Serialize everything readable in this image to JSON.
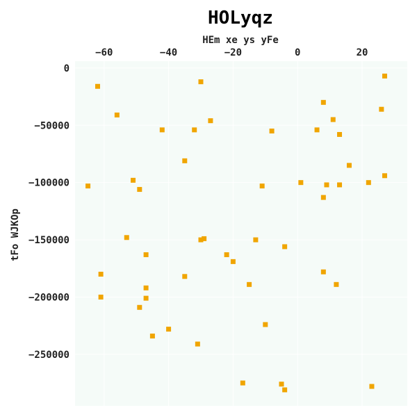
{
  "chart_data": {
    "type": "scatter",
    "title": "HOLyqz",
    "xlabel": "HEm xe  ys yFe",
    "ylabel": "tFo WJKOp",
    "xlim": [
      -69,
      34
    ],
    "ylim": [
      -295000,
      6000
    ],
    "x_ticks": [
      -60,
      -40,
      -20,
      0,
      20
    ],
    "y_ticks": [
      0,
      -50000,
      -100000,
      -150000,
      -200000,
      -250000
    ],
    "x_axis_position": "top",
    "grid": true,
    "colors": {
      "background": "#f5fbf8",
      "marker": "#f0a500",
      "grid": "#ffffff"
    },
    "series": [
      {
        "marker": "square",
        "points": [
          {
            "x": -62,
            "y": -16000
          },
          {
            "x": -30,
            "y": -12000
          },
          {
            "x": 27,
            "y": -7000
          },
          {
            "x": 8,
            "y": -30000
          },
          {
            "x": -56,
            "y": -41000
          },
          {
            "x": 26,
            "y": -36000
          },
          {
            "x": -27,
            "y": -46000
          },
          {
            "x": 11,
            "y": -45000
          },
          {
            "x": -42,
            "y": -54000
          },
          {
            "x": -32,
            "y": -54000
          },
          {
            "x": -8,
            "y": -55000
          },
          {
            "x": 6,
            "y": -54000
          },
          {
            "x": 13,
            "y": -58000
          },
          {
            "x": -35,
            "y": -81000
          },
          {
            "x": 16,
            "y": -85000
          },
          {
            "x": -51,
            "y": -98000
          },
          {
            "x": -65,
            "y": -103000
          },
          {
            "x": -49,
            "y": -106000
          },
          {
            "x": -11,
            "y": -103000
          },
          {
            "x": 1,
            "y": -100000
          },
          {
            "x": 9,
            "y": -102000
          },
          {
            "x": 13,
            "y": -102000
          },
          {
            "x": 22,
            "y": -100000
          },
          {
            "x": 27,
            "y": -94000
          },
          {
            "x": 8,
            "y": -113000
          },
          {
            "x": -53,
            "y": -148000
          },
          {
            "x": -30,
            "y": -150000
          },
          {
            "x": -29,
            "y": -149000
          },
          {
            "x": -13,
            "y": -150000
          },
          {
            "x": -4,
            "y": -156000
          },
          {
            "x": -47,
            "y": -163000
          },
          {
            "x": -22,
            "y": -163000
          },
          {
            "x": -20,
            "y": -169000
          },
          {
            "x": -61,
            "y": -180000
          },
          {
            "x": -35,
            "y": -182000
          },
          {
            "x": 8,
            "y": -178000
          },
          {
            "x": -15,
            "y": -189000
          },
          {
            "x": 12,
            "y": -189000
          },
          {
            "x": -47,
            "y": -192000
          },
          {
            "x": -61,
            "y": -200000
          },
          {
            "x": -47,
            "y": -201000
          },
          {
            "x": -49,
            "y": -209000
          },
          {
            "x": -40,
            "y": -228000
          },
          {
            "x": -10,
            "y": -224000
          },
          {
            "x": -45,
            "y": -234000
          },
          {
            "x": -31,
            "y": -241000
          },
          {
            "x": -17,
            "y": -275000
          },
          {
            "x": -5,
            "y": -276000
          },
          {
            "x": -4,
            "y": -281000
          },
          {
            "x": 23,
            "y": -278000
          }
        ]
      }
    ]
  }
}
